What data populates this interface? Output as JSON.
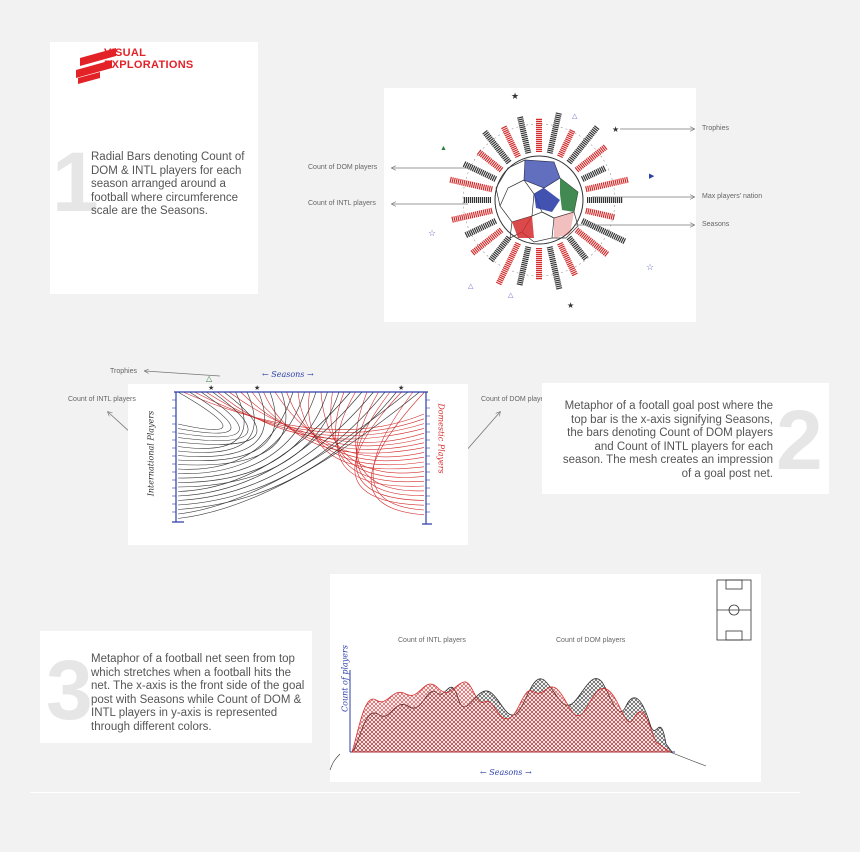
{
  "logo": {
    "line1": "VISUAL",
    "line2": "EXPLORATIONS"
  },
  "panel1": {
    "number": "1",
    "description": "Radial Bars denoting Count of DOM & INTL players for each season arranged around a football where circumference scale are the Seasons.",
    "annotations": {
      "dom": "Count of DOM players",
      "intl": "Count of INTL players",
      "trophies": "Trophies",
      "max_nation": "Max players' nation",
      "seasons": "Seasons"
    }
  },
  "panel2": {
    "number": "2",
    "description": "Metaphor of a footall goal post where the top bar is the x-axis signifying Seasons, the bars denoting Count of DOM players and Count of INTL players for each season. The mesh creates an impression of a goal post net.",
    "annotations": {
      "trophies": "Trophies",
      "intl": "Count of INTL players",
      "dom": "Count of DOM players"
    },
    "sketch_labels": {
      "seasons": "← Seasons →",
      "intl_axis": "International Players",
      "dom_axis": "Domestic Players"
    }
  },
  "panel3": {
    "number": "3",
    "description": "Metaphor of a football net seen from top which stretches when a football hits the net. The x-axis is the front side of the goal post with Seasons while Count of DOM & INTL players in y-axis is represented through different colors.",
    "annotations": {
      "intl": "Count of INTL players",
      "dom": "Count of DOM players"
    },
    "sketch_labels": {
      "y_axis": "Count of players",
      "seasons": "← Seasons →"
    }
  },
  "colors": {
    "brand_red": "#e32228",
    "sketch_red": "#d42a2a",
    "sketch_dark": "#333333",
    "sketch_blue": "#2c3fa8",
    "sketch_green": "#2e7d3e"
  }
}
